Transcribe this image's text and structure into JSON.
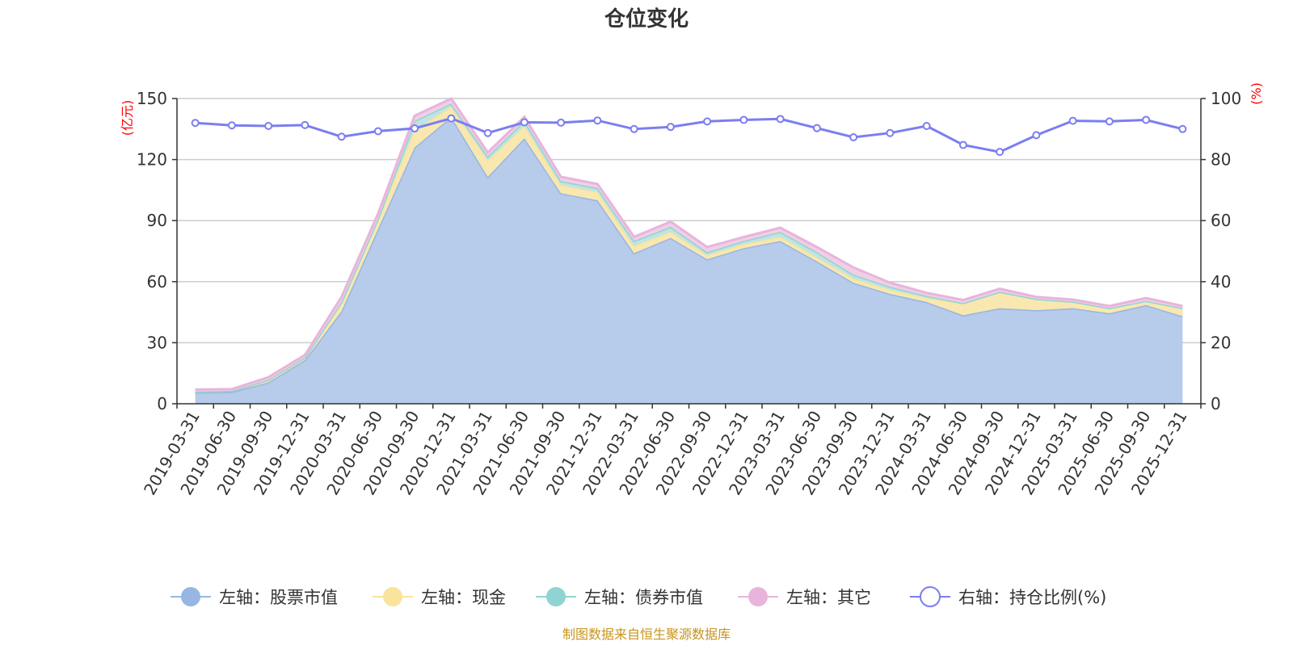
{
  "chart_data": {
    "type": "area",
    "title": "仓位变化",
    "source": "制图数据来自恒生聚源数据库",
    "left_unit": "(亿元)",
    "right_unit": "(%)",
    "left_axis": {
      "min": 0,
      "max": 150,
      "ticks": [
        "0",
        "30",
        "60",
        "90",
        "120",
        "150"
      ]
    },
    "right_axis": {
      "min": 0,
      "max": 100,
      "ticks": [
        "0",
        "20",
        "40",
        "60",
        "80",
        "100"
      ]
    },
    "categories": [
      "2019-03-31",
      "2019-06-30",
      "2019-09-30",
      "2019-12-31",
      "2020-03-31",
      "2020-06-30",
      "2020-09-30",
      "2020-12-31",
      "2021-03-31",
      "2021-06-30",
      "2021-09-30",
      "2021-12-31",
      "2022-03-31",
      "2022-06-30",
      "2022-09-30",
      "2022-12-31",
      "2023-03-31",
      "2023-06-30",
      "2023-09-30",
      "2023-12-31",
      "2024-03-31",
      "2024-06-30",
      "2024-09-30",
      "2024-12-31",
      "2025-03-31",
      "2025-06-30",
      "2025-09-30",
      "2025-12-31"
    ],
    "series": [
      {
        "name": "左轴：股票市值",
        "axis": "left",
        "color": "#98b6e2",
        "fill": "#b7cbea",
        "values": [
          5.5,
          5.8,
          10.5,
          21.5,
          45.5,
          86,
          126,
          141,
          111.5,
          130.5,
          103.5,
          100,
          74,
          81.5,
          71,
          76.5,
          80,
          70,
          59.5,
          54,
          50,
          43.5,
          47,
          46,
          47,
          44.5,
          48.5,
          43
        ]
      },
      {
        "name": "左轴：现金",
        "axis": "left",
        "color": "#f8e49c",
        "fill": "#f8e8b0",
        "values": [
          0.5,
          0.6,
          1.2,
          1.2,
          4.5,
          5,
          8.5,
          5,
          8,
          6,
          4,
          4,
          3.5,
          3,
          2,
          2,
          2,
          2,
          2,
          2,
          2,
          6,
          8,
          5.5,
          3.2,
          2.5,
          2,
          4
        ]
      },
      {
        "name": "左轴：债券市值",
        "axis": "left",
        "color": "#8fd4d2",
        "fill": "#bfe4e2",
        "values": [
          0,
          0,
          0,
          0,
          0,
          0,
          4.5,
          1.5,
          2,
          2.5,
          2,
          2,
          2.5,
          2.5,
          1.5,
          1.5,
          2.5,
          2.5,
          2,
          1.5,
          1,
          0,
          0,
          0,
          0,
          0,
          0,
          0
        ]
      },
      {
        "name": "左轴：其它",
        "axis": "left",
        "color": "#e8b4dc",
        "fill": "#f0cfe6",
        "values": [
          1,
          0.8,
          1.3,
          1.3,
          2.5,
          2.5,
          2.5,
          2.5,
          2,
          2,
          2,
          2,
          2,
          2.5,
          2.5,
          2,
          2,
          2.5,
          3.5,
          2,
          1.5,
          1.5,
          1.5,
          1,
          1,
          1,
          1.5,
          1
        ]
      },
      {
        "name": "右轴：持仓比例(%)",
        "axis": "right",
        "color": "#7b7ef0",
        "values": [
          92,
          91.2,
          91,
          91.3,
          87.5,
          89.3,
          90.2,
          93.5,
          88.7,
          92.2,
          92.1,
          92.8,
          90,
          90.7,
          92.5,
          93,
          93.3,
          90.3,
          87.3,
          88.7,
          91,
          84.8,
          82.5,
          88,
          92.7,
          92.5,
          93,
          90
        ]
      }
    ]
  }
}
